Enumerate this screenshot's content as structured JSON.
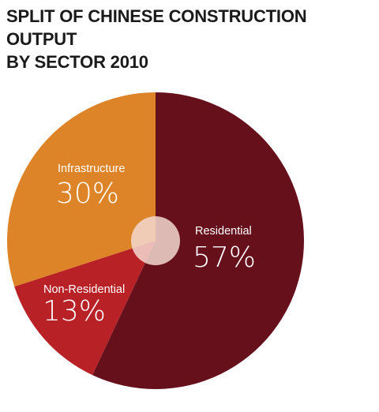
{
  "title_lines": [
    "SPLIT OF CHINESE CONSTRUCTION OUTPUT",
    "BY SECTOR 2010"
  ],
  "chart_data": {
    "type": "pie",
    "title": "SPLIT OF CHINESE CONSTRUCTION OUTPUT BY SECTOR 2010",
    "slices": [
      {
        "label": "Residential",
        "value": 57,
        "display": "57%",
        "color": "#66101c"
      },
      {
        "label": "Non-Residential",
        "value": 13,
        "display": "13%",
        "color": "#b82126"
      },
      {
        "label": "Infrastructure",
        "value": 30,
        "display": "30%",
        "color": "#dd8428"
      }
    ],
    "start_angle_deg": 0,
    "direction": "clockwise",
    "center_circle_color": "#f3d8d0",
    "center_circle_opacity": 0.85
  }
}
